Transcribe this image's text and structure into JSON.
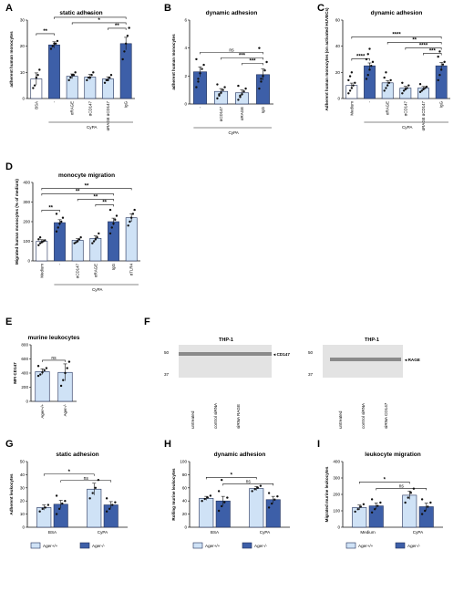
{
  "figure": {
    "panel_letters": [
      "A",
      "B",
      "C",
      "D",
      "E",
      "F",
      "G",
      "H",
      "I"
    ],
    "colors": {
      "light": "#cfe2f6",
      "dark": "#3d5fa8",
      "outline": "#1f2f5a",
      "ctrl": "#ffffff"
    }
  },
  "chart_data": [
    {
      "panel": "A",
      "type": "bar",
      "title": "static adhesion",
      "ylabel": "adherent human monocytes",
      "ylim": [
        0,
        30
      ],
      "yticks": [
        0,
        10,
        20,
        30
      ],
      "categories": [
        "BSA",
        "-",
        "αRAGE",
        "αCD147",
        "αRAGE αCD147",
        "IgG"
      ],
      "values": [
        7.5,
        20.5,
        8.5,
        8.2,
        7.5,
        21
      ],
      "errors": [
        2.3,
        1.2,
        0.9,
        1.0,
        0.8,
        2.4
      ],
      "colors": [
        "white",
        "dark",
        "light",
        "light",
        "light",
        "dark"
      ],
      "points": [
        [
          4,
          5,
          8,
          9,
          11
        ],
        [
          19,
          20,
          21,
          21,
          22
        ],
        [
          7,
          8,
          9,
          9,
          10
        ],
        [
          7,
          8,
          8,
          9,
          10
        ],
        [
          6,
          7,
          7,
          8,
          9
        ],
        [
          15,
          18,
          21,
          24,
          27
        ]
      ],
      "group_label": "CyPA",
      "significance": [
        {
          "from": 0,
          "to": 1,
          "label": "**",
          "level": 0
        },
        {
          "from": 1,
          "to": 5,
          "label": "*",
          "level": 3
        },
        {
          "from": 2,
          "to": 5,
          "label": "*",
          "level": 2
        },
        {
          "from": 4,
          "to": 5,
          "label": "**",
          "level": 1
        }
      ]
    },
    {
      "panel": "B",
      "type": "bar",
      "title": "dynamic adhesion",
      "ylabel": "adherent human monocytes",
      "ylim": [
        0,
        6
      ],
      "yticks": [
        0,
        2,
        4,
        6
      ],
      "categories": [
        "-",
        "αCD147",
        "αRAGE",
        "IgG"
      ],
      "values": [
        2.3,
        0.9,
        0.8,
        2.1
      ],
      "errors": [
        0.35,
        0.2,
        0.2,
        0.4
      ],
      "colors": [
        "dark",
        "light",
        "light",
        "dark"
      ],
      "points": [
        [
          1.2,
          1.8,
          2.2,
          2.5,
          2.8,
          3.2,
          1.6
        ],
        [
          0.4,
          0.6,
          0.8,
          1.0,
          1.2,
          1.4,
          0.7
        ],
        [
          0.3,
          0.5,
          0.7,
          0.9,
          1.1,
          1.3,
          0.6
        ],
        [
          1.1,
          1.6,
          2.0,
          2.4,
          3.0,
          4.0,
          1.8
        ]
      ],
      "group_label": "CyPA",
      "significance": [
        {
          "from": 0,
          "to": 3,
          "label": "ns",
          "level": 2
        },
        {
          "from": 1,
          "to": 3,
          "label": "***",
          "level": 1
        },
        {
          "from": 2,
          "to": 3,
          "label": "***",
          "level": 0
        }
      ]
    },
    {
      "panel": "C",
      "type": "bar",
      "title": "dynamic adhesion",
      "ylabel": "Adherent human monocytes (on activated HUVECs)",
      "ylim": [
        0,
        60
      ],
      "yticks": [
        0,
        20,
        40,
        60
      ],
      "categories": [
        "Medium",
        "-",
        "αRAGE",
        "αCD147",
        "αRAGE αCD147",
        "IgG"
      ],
      "values": [
        10,
        25,
        12,
        8,
        8,
        25
      ],
      "errors": [
        1.8,
        2.2,
        1.8,
        1.3,
        1.2,
        2.6
      ],
      "colors": [
        "white",
        "dark",
        "light",
        "light",
        "light",
        "dark"
      ],
      "points": [
        [
          4,
          6,
          8,
          10,
          12,
          14,
          17,
          20
        ],
        [
          15,
          18,
          22,
          25,
          28,
          30,
          34,
          38
        ],
        [
          6,
          8,
          10,
          12,
          14,
          16,
          20
        ],
        [
          4,
          6,
          7,
          8,
          10,
          12
        ],
        [
          5,
          6,
          7,
          8,
          9,
          11
        ],
        [
          14,
          18,
          22,
          26,
          28,
          32,
          36
        ]
      ],
      "group_label": "CyPA",
      "significance": [
        {
          "from": 0,
          "to": 1,
          "label": "****",
          "level": 0
        },
        {
          "from": 0,
          "to": 5,
          "label": "****",
          "level": 4
        },
        {
          "from": 2,
          "to": 5,
          "label": "**",
          "level": 3
        },
        {
          "from": 3,
          "to": 5,
          "label": "****",
          "level": 2
        },
        {
          "from": 4,
          "to": 5,
          "label": "***",
          "level": 1
        }
      ]
    },
    {
      "panel": "D",
      "type": "bar",
      "title": "monocyte migration",
      "ylabel": "Migrated human monocytes (% of medium)",
      "ylim": [
        0,
        400
      ],
      "yticks": [
        0,
        100,
        200,
        300,
        400
      ],
      "categories": [
        "Medium",
        "-",
        "αCD147",
        "αRAGE",
        "IgG",
        "αTLR4"
      ],
      "values": [
        100,
        195,
        105,
        115,
        200,
        220
      ],
      "errors": [
        8,
        15,
        8,
        12,
        18,
        20
      ],
      "colors": [
        "white",
        "dark",
        "light",
        "light",
        "dark",
        "light"
      ],
      "points": [
        [
          80,
          90,
          95,
          100,
          105,
          110,
          120
        ],
        [
          150,
          170,
          190,
          200,
          220,
          240
        ],
        [
          90,
          95,
          100,
          110,
          120
        ],
        [
          90,
          100,
          110,
          120,
          140
        ],
        [
          140,
          170,
          190,
          210,
          230,
          260
        ],
        [
          180,
          200,
          220,
          240,
          260
        ]
      ],
      "group_label": "CyPA",
      "significance": [
        {
          "from": 0,
          "to": 1,
          "label": "**",
          "level": 0
        },
        {
          "from": 0,
          "to": 4,
          "label": "**",
          "level": 3
        },
        {
          "from": 0,
          "to": 5,
          "label": "**",
          "level": 4
        },
        {
          "from": 2,
          "to": 4,
          "label": "**",
          "level": 2
        },
        {
          "from": 3,
          "to": 4,
          "label": "**",
          "level": 1
        }
      ]
    },
    {
      "panel": "E",
      "type": "bar",
      "title": "murine leukocytes",
      "ylabel": "MFI CD147",
      "ylim": [
        0,
        800
      ],
      "yticks": [
        0,
        200,
        400,
        600,
        800
      ],
      "categories": [
        "Ager+/+",
        "Ager-/-"
      ],
      "values": [
        420,
        410
      ],
      "errors": [
        40,
        120
      ],
      "colors": [
        "light",
        "light"
      ],
      "points": [
        [
          360,
          380,
          410,
          440,
          470,
          500
        ],
        [
          220,
          300,
          400,
          470,
          560
        ]
      ],
      "significance": [
        {
          "from": 0,
          "to": 1,
          "label": "ns",
          "level": 0
        }
      ]
    },
    {
      "panel": "G",
      "type": "bar",
      "title": "static adhesion",
      "ylabel": "Adherent leukocytes",
      "ylim": [
        0,
        50
      ],
      "yticks": [
        0,
        10,
        20,
        30,
        40,
        50
      ],
      "categories": [
        "BSA",
        "CyPA"
      ],
      "series": [
        {
          "name": "Ager+/+",
          "values": [
            15,
            29
          ],
          "errors": [
            2,
            4.5
          ],
          "points": [
            [
              12,
              14,
              15,
              17
            ],
            [
              22,
              26,
              30,
              36
            ]
          ]
        },
        {
          "name": "Ager-/-",
          "values": [
            17.5,
            17
          ],
          "errors": [
            3,
            2.5
          ],
          "points": [
            [
              10,
              14,
              18,
              20,
              24
            ],
            [
              12,
              14,
              17,
              19,
              22
            ]
          ]
        }
      ],
      "significance": [
        {
          "a": [
            0,
            0
          ],
          "b": [
            1,
            0
          ],
          "label": "*"
        },
        {
          "a": [
            0,
            1
          ],
          "b": [
            1,
            1
          ],
          "label": "ns"
        }
      ],
      "legend": [
        "Ager+/+",
        "Ager-/-"
      ]
    },
    {
      "panel": "H",
      "type": "bar",
      "title": "dynamic adhesion",
      "ylabel": "Rolling murine leukocytes",
      "ylim": [
        0,
        100
      ],
      "yticks": [
        0,
        20,
        40,
        60,
        80,
        100
      ],
      "categories": [
        "BSA",
        "CyPA"
      ],
      "series": [
        {
          "name": "Ager+/+",
          "values": [
            44,
            59
          ],
          "errors": [
            3,
            3
          ],
          "points": [
            [
              40,
              43,
              45,
              48
            ],
            [
              55,
              58,
              60,
              63
            ]
          ]
        },
        {
          "name": "Ager-/-",
          "values": [
            40,
            42
          ],
          "errors": [
            7,
            5
          ],
          "points": [
            [
              25,
              32,
              38,
              45,
              55,
              72
            ],
            [
              30,
              36,
              42,
              47,
              52
            ]
          ]
        }
      ],
      "significance": [
        {
          "a": [
            0,
            0
          ],
          "b": [
            1,
            0
          ],
          "label": "*"
        },
        {
          "a": [
            0,
            1
          ],
          "b": [
            1,
            1
          ],
          "label": "ns"
        }
      ],
      "legend": [
        "Ager+/+",
        "Ager-/-"
      ]
    },
    {
      "panel": "I",
      "type": "bar",
      "title": "leukocyte migration",
      "ylabel": "Migrated murine leukocytes",
      "ylim": [
        0,
        400
      ],
      "yticks": [
        0,
        100,
        200,
        300,
        400
      ],
      "categories": [
        "Medium",
        "CyPA"
      ],
      "series": [
        {
          "name": "Ager+/+",
          "values": [
            120,
            195
          ],
          "errors": [
            15,
            25
          ],
          "points": [
            [
              95,
              110,
              125,
              140
            ],
            [
              150,
              180,
              210,
              235
            ]
          ]
        },
        {
          "name": "Ager-/-",
          "values": [
            130,
            125
          ],
          "errors": [
            18,
            22
          ],
          "points": [
            [
              90,
              110,
              130,
              150,
              170
            ],
            [
              80,
              100,
              125,
              150,
              170
            ]
          ]
        }
      ],
      "significance": [
        {
          "a": [
            0,
            0
          ],
          "b": [
            1,
            0
          ],
          "label": "*"
        },
        {
          "a": [
            0,
            1
          ],
          "b": [
            1,
            1
          ],
          "label": "ns"
        }
      ],
      "legend": [
        "Ager+/+",
        "Ager-/-"
      ]
    }
  ],
  "blots": [
    {
      "title": "THP-1",
      "markers": [
        "50",
        "37"
      ],
      "band_label": "◂ CD147",
      "lanes": [
        "untreated",
        "control siRNA",
        "siRNA RAGE"
      ]
    },
    {
      "title": "THP-1",
      "markers": [
        "50",
        "37"
      ],
      "band_label": "◂ RAGE",
      "lanes": [
        "untreated",
        "control siRNA",
        "siRNA CD147"
      ]
    }
  ]
}
